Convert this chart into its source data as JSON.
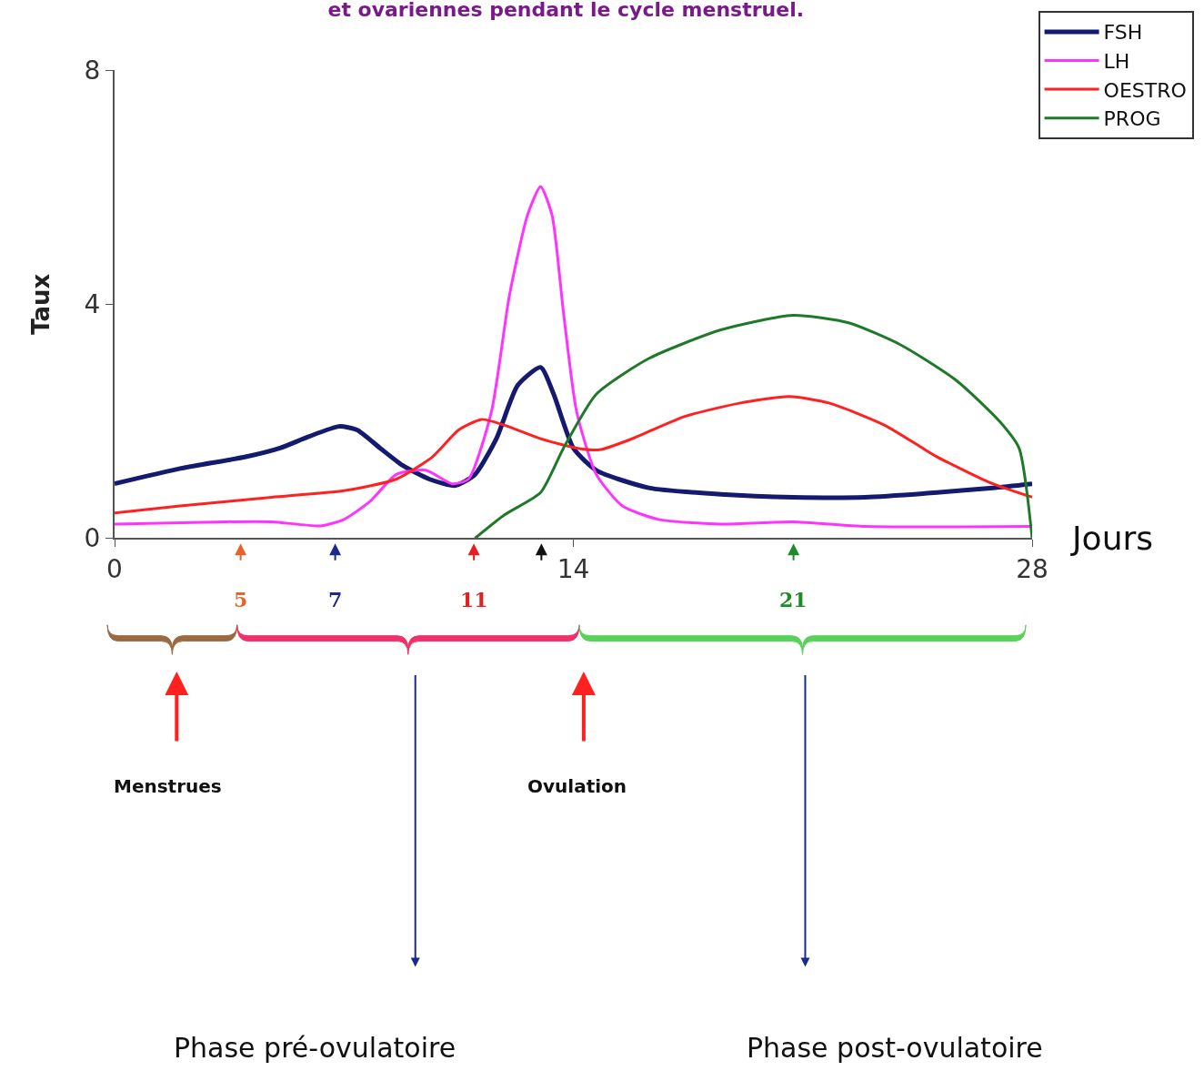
{
  "chart_data": {
    "type": "line",
    "title": "et ovariennes pendant le cycle menstruel.",
    "xlabel": "Jours",
    "ylabel": "Taux",
    "xlim": [
      0,
      28
    ],
    "ylim": [
      0,
      8
    ],
    "xticks": [
      0,
      14,
      28
    ],
    "yticks": [
      0,
      4,
      8
    ],
    "grid": false,
    "legend": "top right",
    "marker": "none",
    "line_style": "solid",
    "series": [
      {
        "name": "FSH",
        "color": "#141a6e",
        "x": [
          0,
          2,
          4,
          5.05,
          5.9,
          6.85,
          7.4,
          8.1,
          8.8,
          9.6,
          10.4,
          11,
          11.65,
          12.3,
          13,
          13.4,
          14,
          14.7,
          16.3,
          18.5,
          20.7,
          22.9,
          25.1,
          26.8,
          28
        ],
        "values": [
          0.93,
          1.19,
          1.39,
          1.54,
          1.73,
          1.91,
          1.85,
          1.54,
          1.24,
          1.01,
          0.9,
          1.09,
          1.7,
          2.61,
          2.92,
          2.46,
          1.54,
          1.16,
          0.86,
          0.75,
          0.7,
          0.7,
          0.78,
          0.86,
          0.93
        ]
      },
      {
        "name": "LH",
        "color": "#ff33ff",
        "x": [
          0,
          3.4,
          4.8,
          6.3,
          7,
          7.8,
          8.6,
          9.5,
          10.3,
          10.8,
          11.5,
          12.05,
          12.6,
          13,
          13.35,
          13.7,
          14.1,
          14.7,
          15.5,
          16.6,
          18.5,
          20.7,
          22.9,
          28
        ],
        "values": [
          0.24,
          0.28,
          0.28,
          0.21,
          0.32,
          0.63,
          1.09,
          1.16,
          0.93,
          1.01,
          2.16,
          4.15,
          5.52,
          6.01,
          5.52,
          3.85,
          2.16,
          1.09,
          0.55,
          0.32,
          0.24,
          0.28,
          0.2,
          0.2
        ]
      },
      {
        "name": "OESTRO",
        "color": "#ff2020",
        "x": [
          0,
          2,
          4.8,
          7,
          8.6,
          9.7,
          10.5,
          11.2,
          11.9,
          13,
          14.1,
          14.8,
          15.8,
          17.4,
          19.1,
          20.6,
          21.8,
          23.5,
          25.1,
          26.8,
          28
        ],
        "values": [
          0.43,
          0.55,
          0.7,
          0.81,
          1.01,
          1.39,
          1.85,
          2.03,
          1.93,
          1.7,
          1.54,
          1.51,
          1.7,
          2.08,
          2.31,
          2.42,
          2.31,
          1.93,
          1.39,
          0.93,
          0.7
        ]
      },
      {
        "name": "PROG",
        "color": "#1e7a28",
        "x": [
          11,
          11.9,
          13,
          13.7,
          14.7,
          16.3,
          18.5,
          20.7,
          22.4,
          24,
          25.7,
          27,
          27.6,
          28
        ],
        "values": [
          0,
          0.4,
          0.78,
          1.54,
          2.46,
          3.07,
          3.56,
          3.81,
          3.68,
          3.3,
          2.69,
          2,
          1.54,
          0
        ]
      }
    ],
    "annotations": [
      "5",
      "7",
      "11",
      "21",
      "Menstrues",
      "Ovulation",
      "Phase pré-ovulatoire",
      "Phase post-ovulatoire"
    ]
  }
}
